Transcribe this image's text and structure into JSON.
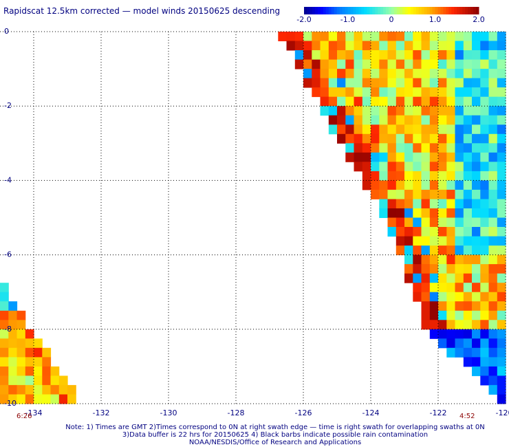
{
  "title": "Rapidscat 12.5km corrected — model winds 20150625 descending",
  "colorbar": {
    "ticks": [
      "-2.0",
      "-1.0",
      "0",
      "1.0",
      "2.0"
    ],
    "min": -2.0,
    "max": 2.0
  },
  "times": {
    "left": "6:26",
    "right": "4:52"
  },
  "notes": {
    "line1": "Note: 1) Times are GMT 2)Times correspond to 0N at right swath edge — time is right swath for overlapping swaths at 0N",
    "line2": "3)Data buffer is 22 hrs for 20150625 4) Black barbs indicate possible rain contamination",
    "line3": "NOAA/NESDIS/Office of Research and Applications"
  },
  "chart_data": {
    "type": "heatmap",
    "title": "Rapidscat 12.5km corrected — model winds 20150625 descending",
    "xlabel": "",
    "ylabel": "",
    "xlim": [
      -135.0,
      -120.0
    ],
    "ylim": [
      -10.0,
      0.0
    ],
    "x_ticks": [
      "-134",
      "-132",
      "-130",
      "-128",
      "-126",
      "-124",
      "-122",
      "-120"
    ],
    "y_ticks": [
      "0",
      "-2",
      "-4",
      "-6",
      "-8",
      "-10"
    ],
    "value_range": [
      -2.0,
      2.0
    ],
    "grid": true,
    "cell_size_deg": 0.25,
    "regions": [
      {
        "name": "",
        "description": "main swath east of a diagonal edge from (-126.6,0) to (-122.2,-8), plus lower segment to (-120,-10)",
        "edge_points": [
          [
            -126.6,
            0.0
          ],
          [
            -124.8,
            -3.0
          ],
          [
            -123.3,
            -5.3
          ],
          [
            -122.2,
            -8.0
          ],
          [
            -120.0,
            -10.0
          ]
        ],
        "near_edge_value": 2.0,
        "interior_value": 0.7,
        "far_east_value": -1.0
      },
      {
        "name": "",
        "description": "small triangle at lower left from (-135,-6.7) to (-132.6,-10)",
        "edge_points": [
          [
            -135.0,
            -6.7
          ],
          [
            -132.6,
            -10.0
          ]
        ],
        "near_edge_value": 1.5,
        "interior_value": 0.6
      }
    ]
  }
}
